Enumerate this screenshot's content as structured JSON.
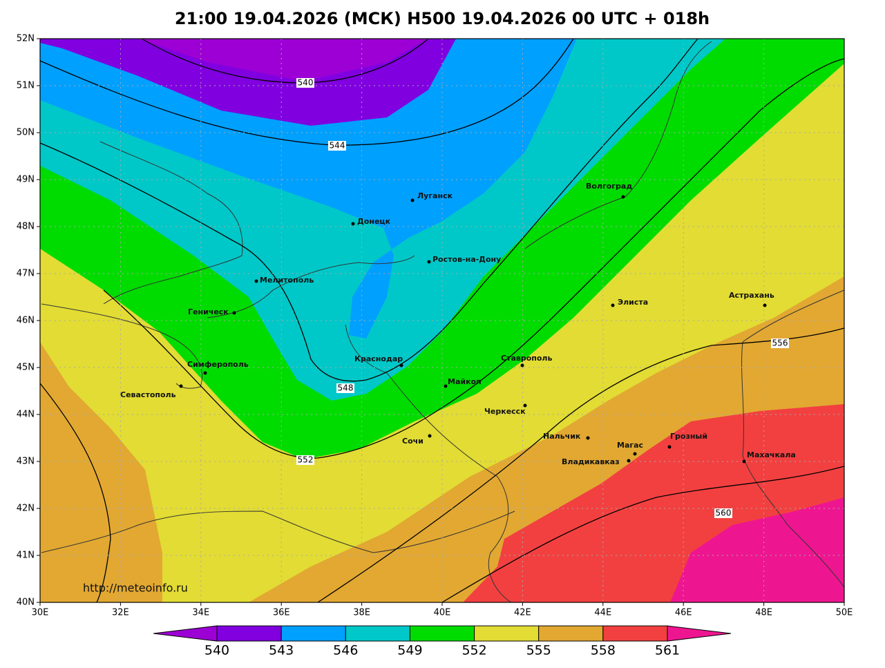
{
  "title": "21:00 19.04.2026 (МСК) H500  19.04.2026 00 UTC + 018h",
  "axes": {
    "lat_labels": [
      "52N",
      "51N",
      "50N",
      "49N",
      "48N",
      "47N",
      "46N",
      "45N",
      "44N",
      "43N",
      "42N",
      "41N",
      "40N"
    ],
    "lon_labels": [
      "30E",
      "32E",
      "34E",
      "36E",
      "38E",
      "40E",
      "42E",
      "44E",
      "46E",
      "48E",
      "50E"
    ]
  },
  "contour_labels": [
    540,
    544,
    548,
    552,
    556,
    560
  ],
  "cities": [
    "Луганск",
    "Донецк",
    "Ростов-на-Дону",
    "Волгоград",
    "Мелитополь",
    "Геническ",
    "Элиста",
    "Астрахань",
    "Симферополь",
    "Краснодар",
    "Ставрополь",
    "Севастополь",
    "Майкоп",
    "Черкесск",
    "Нальчик",
    "Сочи",
    "Магас",
    "Грозный",
    "Владикавказ",
    "Махачкала"
  ],
  "source_url": "http://meteoinfo.ru",
  "colorbar": {
    "levels": [
      540,
      543,
      546,
      549,
      552,
      555,
      558,
      561
    ],
    "colors": [
      "#9c00d4",
      "#8000e0",
      "#00a0ff",
      "#00c8c8",
      "#00dc00",
      "#e2dc34",
      "#e2a832",
      "#f24040",
      "#ee1690"
    ]
  }
}
